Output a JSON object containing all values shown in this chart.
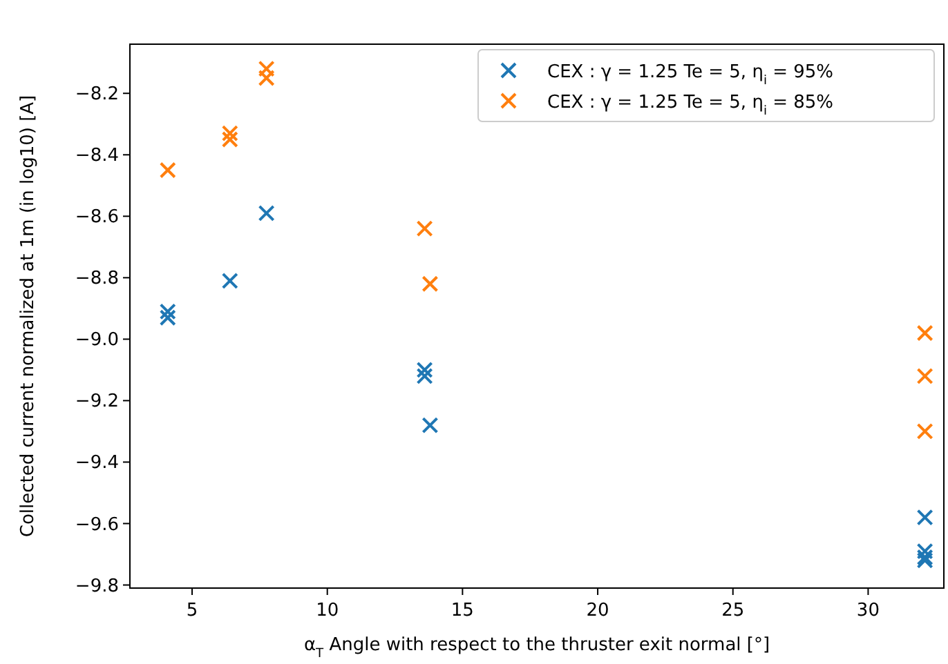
{
  "chart_data": {
    "type": "scatter",
    "xlabel": "α$_{T}$ Angle with respect to the thruster exit normal [°]",
    "ylabel": "Collected current normalized at 1m (in log10) [A]",
    "xlim": [
      2.7,
      32.8
    ],
    "ylim": [
      -9.81,
      -8.04
    ],
    "xticks": [
      5,
      10,
      15,
      20,
      25,
      30
    ],
    "yticks": [
      -9.8,
      -9.6,
      -9.4,
      -9.2,
      {
        "value": -9,
        "label": "−9.0"
      },
      -8.8,
      -8.6,
      -8.4,
      -8.2
    ],
    "marker": "cross",
    "legend": "top right",
    "grid": false,
    "series": [
      {
        "name": "CEX : γ = 1.25 Te = 5, η$_{i}$ = 95%",
        "color": "#1f77b4",
        "x": [
          4.1,
          4.1,
          6.4,
          7.75,
          13.6,
          13.6,
          13.8,
          32.1,
          32.1,
          32.1,
          32.1
        ],
        "values": [
          -8.91,
          -8.93,
          -8.81,
          -8.59,
          -9.1,
          -9.12,
          -9.28,
          -9.58,
          -9.69,
          -9.71,
          -9.72
        ]
      },
      {
        "name": "CEX : γ = 1.25 Te = 5, η$_{i}$ = 85%",
        "color": "#ff7f0e",
        "x": [
          4.1,
          6.4,
          6.4,
          7.75,
          7.75,
          13.6,
          13.8,
          32.1,
          32.1,
          32.1
        ],
        "values": [
          -8.45,
          -8.33,
          -8.35,
          -8.12,
          -8.15,
          -8.64,
          -8.82,
          -8.98,
          -9.12,
          -9.3
        ]
      }
    ]
  }
}
